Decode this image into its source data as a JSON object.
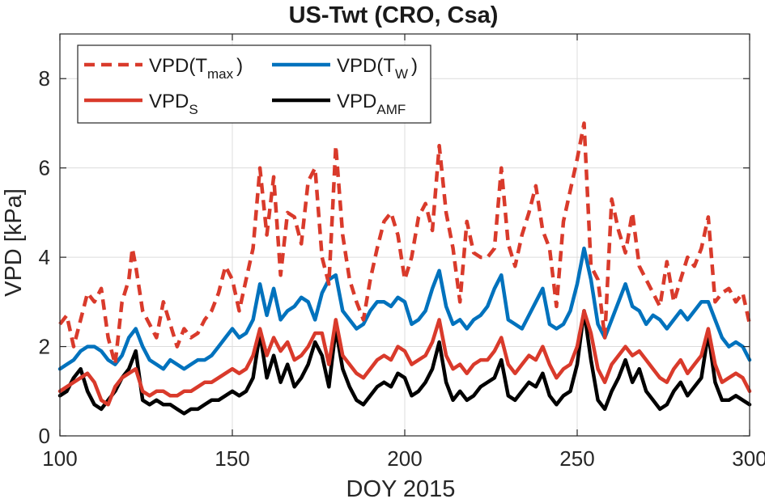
{
  "chart_data": {
    "type": "line",
    "title": "US-Twt (CRO, Csa)",
    "xlabel": "DOY 2015",
    "ylabel": "VPD [kPa]",
    "xlim": [
      100,
      300
    ],
    "ylim": [
      0,
      9
    ],
    "xticks": [
      100,
      150,
      200,
      250,
      300
    ],
    "yticks": [
      0,
      2,
      4,
      6,
      8
    ],
    "grid": true,
    "legend_position": "top-left",
    "series": [
      {
        "name": "VPD(Tmax)",
        "legend_main": "VPD(T",
        "legend_sub": "max",
        "legend_tail": ")",
        "color": "#d93a2b",
        "style": "dashed",
        "x": [
          100,
          102,
          104,
          106,
          108,
          110,
          112,
          114,
          116,
          118,
          120,
          121,
          122,
          124,
          126,
          128,
          130,
          132,
          134,
          136,
          138,
          140,
          142,
          144,
          146,
          148,
          150,
          152,
          154,
          156,
          158,
          160,
          162,
          164,
          166,
          168,
          170,
          172,
          174,
          176,
          178,
          180,
          182,
          184,
          186,
          188,
          190,
          192,
          194,
          196,
          198,
          200,
          202,
          204,
          206,
          208,
          210,
          212,
          214,
          216,
          218,
          220,
          222,
          224,
          226,
          228,
          230,
          232,
          234,
          236,
          238,
          240,
          242,
          244,
          246,
          248,
          250,
          252,
          254,
          256,
          258,
          260,
          262,
          264,
          266,
          268,
          270,
          272,
          274,
          276,
          278,
          280,
          282,
          284,
          286,
          288,
          290,
          292,
          294,
          296,
          298,
          300
        ],
        "y": [
          2.5,
          2.7,
          2.0,
          2.6,
          3.2,
          3.0,
          3.3,
          2.2,
          1.6,
          3.0,
          3.5,
          4.2,
          3.8,
          2.8,
          2.5,
          2.2,
          3.0,
          2.5,
          2.0,
          2.4,
          2.2,
          2.3,
          2.6,
          2.8,
          3.2,
          3.8,
          3.5,
          2.8,
          3.5,
          4.2,
          6.0,
          4.5,
          5.8,
          3.6,
          5.0,
          4.9,
          4.3,
          5.7,
          6.0,
          4.0,
          3.4,
          6.5,
          4.5,
          3.5,
          3.0,
          2.6,
          3.5,
          4.2,
          4.8,
          5.0,
          4.5,
          3.5,
          4.0,
          4.9,
          5.2,
          4.6,
          6.5,
          5.0,
          4.2,
          3.0,
          4.8,
          4.1,
          4.0,
          4.0,
          4.2,
          6.0,
          4.3,
          3.8,
          4.5,
          5.0,
          5.6,
          4.6,
          4.2,
          2.9,
          4.8,
          5.5,
          6.2,
          7.0,
          3.8,
          3.5,
          2.2,
          5.3,
          4.6,
          4.1,
          5.0,
          3.8,
          3.5,
          3.2,
          2.9,
          3.9,
          3.0,
          3.5,
          4.0,
          3.8,
          4.2,
          4.9,
          3.0,
          3.2,
          3.3,
          3.0,
          3.2,
          2.5
        ]
      },
      {
        "name": "VPD(TW)",
        "legend_main": "VPD(T",
        "legend_sub": "W",
        "legend_tail": ")",
        "color": "#0072bd",
        "style": "solid",
        "x": [
          100,
          102,
          104,
          106,
          108,
          110,
          112,
          114,
          116,
          118,
          120,
          122,
          124,
          126,
          128,
          130,
          132,
          134,
          136,
          138,
          140,
          142,
          144,
          146,
          148,
          150,
          152,
          154,
          156,
          158,
          160,
          162,
          164,
          166,
          168,
          170,
          172,
          174,
          176,
          178,
          180,
          182,
          184,
          186,
          188,
          190,
          192,
          194,
          196,
          198,
          200,
          202,
          204,
          206,
          208,
          210,
          212,
          214,
          216,
          218,
          220,
          222,
          224,
          226,
          228,
          230,
          232,
          234,
          236,
          238,
          240,
          242,
          244,
          246,
          248,
          250,
          252,
          254,
          256,
          258,
          260,
          262,
          264,
          266,
          268,
          270,
          272,
          274,
          276,
          278,
          280,
          282,
          284,
          286,
          288,
          290,
          292,
          294,
          296,
          298,
          300
        ],
        "y": [
          1.5,
          1.6,
          1.7,
          1.9,
          2.0,
          2.0,
          1.9,
          1.7,
          1.6,
          1.8,
          2.2,
          2.4,
          2.0,
          1.7,
          1.6,
          1.5,
          1.7,
          1.6,
          1.5,
          1.6,
          1.7,
          1.7,
          1.8,
          2.0,
          2.2,
          2.4,
          2.2,
          2.3,
          2.6,
          3.4,
          2.7,
          3.3,
          2.6,
          2.8,
          2.9,
          3.1,
          3.0,
          2.6,
          3.2,
          3.5,
          3.6,
          2.8,
          2.6,
          2.4,
          2.5,
          2.8,
          3.0,
          3.0,
          2.9,
          3.1,
          3.0,
          2.5,
          2.6,
          2.8,
          3.3,
          3.7,
          2.9,
          2.5,
          2.6,
          2.4,
          2.6,
          2.7,
          2.9,
          3.3,
          3.6,
          2.6,
          2.5,
          2.4,
          2.7,
          3.0,
          3.3,
          2.5,
          2.4,
          2.5,
          2.8,
          3.4,
          4.2,
          3.5,
          2.5,
          2.2,
          2.6,
          3.0,
          3.4,
          2.9,
          2.8,
          2.5,
          2.7,
          2.6,
          2.4,
          2.6,
          2.8,
          2.6,
          2.8,
          3.0,
          3.0,
          2.6,
          2.2,
          2.0,
          2.1,
          2.0,
          1.7
        ]
      },
      {
        "name": "VPDS",
        "legend_main": "VPD",
        "legend_sub": "S",
        "legend_tail": "",
        "color": "#d93a2b",
        "style": "solid",
        "x": [
          100,
          102,
          104,
          106,
          108,
          110,
          112,
          114,
          116,
          118,
          120,
          122,
          124,
          126,
          128,
          130,
          132,
          134,
          136,
          138,
          140,
          142,
          144,
          146,
          148,
          150,
          152,
          154,
          156,
          158,
          160,
          162,
          164,
          166,
          168,
          170,
          172,
          174,
          176,
          178,
          180,
          182,
          184,
          186,
          188,
          190,
          192,
          194,
          196,
          198,
          200,
          202,
          204,
          206,
          208,
          210,
          212,
          214,
          216,
          218,
          220,
          222,
          224,
          226,
          228,
          230,
          232,
          234,
          236,
          238,
          240,
          242,
          244,
          246,
          248,
          250,
          252,
          254,
          256,
          258,
          260,
          262,
          264,
          266,
          268,
          270,
          272,
          274,
          276,
          278,
          280,
          282,
          284,
          286,
          288,
          290,
          292,
          294,
          296,
          298,
          300
        ],
        "y": [
          1.0,
          1.1,
          1.2,
          1.3,
          1.4,
          1.2,
          0.8,
          0.7,
          1.1,
          1.3,
          1.4,
          1.5,
          1.0,
          0.9,
          1.0,
          1.0,
          0.9,
          0.9,
          1.0,
          1.0,
          1.1,
          1.2,
          1.2,
          1.3,
          1.4,
          1.5,
          1.4,
          1.5,
          1.8,
          2.4,
          1.8,
          2.2,
          1.9,
          2.1,
          1.7,
          1.8,
          2.0,
          2.3,
          2.3,
          1.6,
          2.6,
          1.8,
          1.6,
          1.4,
          1.3,
          1.5,
          1.7,
          1.8,
          1.7,
          2.0,
          1.9,
          1.6,
          1.7,
          1.8,
          2.1,
          2.6,
          1.8,
          1.5,
          1.6,
          1.4,
          1.6,
          1.7,
          1.7,
          1.9,
          2.2,
          1.6,
          1.4,
          1.6,
          1.8,
          1.7,
          2.0,
          1.6,
          1.3,
          1.5,
          1.6,
          2.0,
          2.8,
          2.3,
          1.5,
          1.2,
          1.6,
          1.8,
          2.0,
          1.8,
          1.9,
          1.7,
          1.5,
          1.3,
          1.2,
          1.5,
          1.7,
          1.4,
          1.6,
          1.8,
          2.4,
          1.6,
          1.2,
          1.3,
          1.4,
          1.3,
          1.0
        ]
      },
      {
        "name": "VPDAMF",
        "legend_main": "VPD",
        "legend_sub": "AMF",
        "legend_tail": "",
        "color": "#000000",
        "style": "solid",
        "x": [
          100,
          102,
          104,
          106,
          108,
          110,
          112,
          114,
          116,
          118,
          120,
          122,
          124,
          126,
          128,
          130,
          132,
          134,
          136,
          138,
          140,
          142,
          144,
          146,
          148,
          150,
          152,
          154,
          156,
          158,
          160,
          162,
          164,
          166,
          168,
          170,
          172,
          174,
          176,
          178,
          180,
          182,
          184,
          186,
          188,
          190,
          192,
          194,
          196,
          198,
          200,
          202,
          204,
          206,
          208,
          210,
          212,
          214,
          216,
          218,
          220,
          222,
          224,
          226,
          228,
          230,
          232,
          234,
          236,
          238,
          240,
          242,
          244,
          246,
          248,
          250,
          252,
          254,
          256,
          258,
          260,
          262,
          264,
          266,
          268,
          270,
          272,
          274,
          276,
          278,
          280,
          282,
          284,
          286,
          288,
          290,
          292,
          294,
          296,
          298,
          300
        ],
        "y": [
          0.9,
          1.0,
          1.3,
          1.5,
          1.0,
          0.7,
          0.6,
          0.8,
          1.0,
          1.3,
          1.5,
          1.9,
          0.8,
          0.7,
          0.8,
          0.7,
          0.7,
          0.6,
          0.5,
          0.6,
          0.6,
          0.7,
          0.8,
          0.8,
          0.9,
          1.0,
          0.9,
          1.0,
          1.3,
          2.3,
          1.3,
          1.8,
          1.2,
          1.6,
          1.1,
          1.3,
          1.6,
          2.1,
          1.8,
          1.1,
          2.4,
          1.5,
          1.1,
          0.8,
          0.7,
          0.9,
          1.1,
          1.2,
          1.1,
          1.4,
          1.3,
          0.9,
          1.0,
          1.2,
          1.5,
          2.1,
          1.2,
          0.8,
          1.0,
          0.8,
          0.9,
          1.1,
          1.2,
          1.3,
          1.7,
          0.9,
          0.8,
          1.0,
          1.2,
          1.1,
          1.4,
          0.9,
          0.7,
          0.9,
          1.0,
          1.6,
          2.8,
          1.7,
          0.8,
          0.6,
          1.0,
          1.3,
          1.7,
          1.2,
          1.5,
          1.0,
          0.8,
          0.6,
          0.7,
          1.0,
          1.2,
          0.9,
          1.1,
          1.3,
          2.3,
          1.2,
          0.8,
          0.8,
          0.9,
          0.8,
          0.7
        ]
      }
    ]
  }
}
